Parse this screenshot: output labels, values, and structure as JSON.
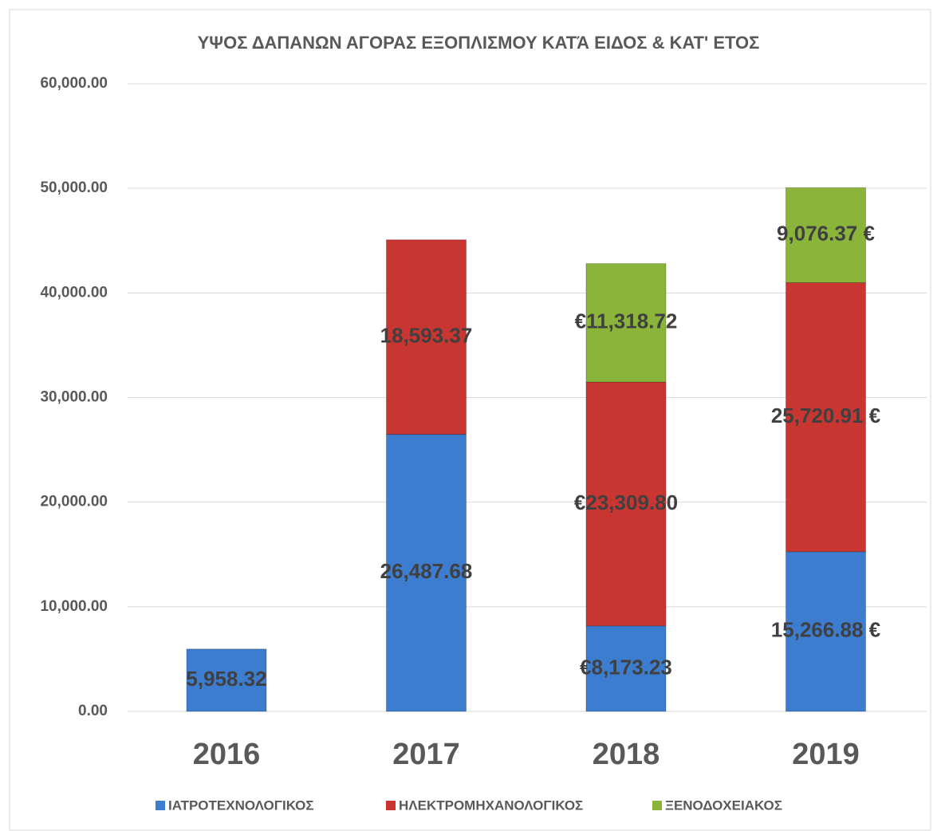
{
  "chart_data": {
    "type": "bar",
    "stacked": true,
    "title": "ΥΨΟΣ ΔΑΠΑΝΩΝ ΑΓΟΡΑΣ ΕΞΟΠΛΙΣΜΟΥ ΚΑΤΆ ΕΙΔΟΣ & ΚΑΤ' ΕΤΟΣ",
    "categories": [
      "2016",
      "2017",
      "2018",
      "2019"
    ],
    "series": [
      {
        "name": "ΙΑΤΡΟΤΕΧΝΟΛΟΓΙΚΟΣ",
        "color": "#3c7dd0",
        "values": [
          5958.32,
          26487.68,
          8173.23,
          15266.88
        ],
        "value_labels": [
          "5,958.32",
          "26,487.68",
          "€8,173.23",
          "15,266.88 €"
        ]
      },
      {
        "name": "ΗΛΕΚΤΡΟΜΗΧΑΝΟΛΟΓΙΚΟΣ",
        "color": "#c93631",
        "values": [
          null,
          18593.37,
          23309.8,
          25720.91
        ],
        "value_labels": [
          null,
          "18,593.37",
          "€23,309.80",
          "25,720.91 €"
        ]
      },
      {
        "name": "ΞΕΝΟΔΟΧΕΙΑΚΟΣ",
        "color": "#8ab43a",
        "values": [
          null,
          null,
          11318.72,
          9076.37
        ],
        "value_labels": [
          null,
          null,
          "€11,318.72",
          "9,076.37 €"
        ]
      }
    ],
    "ylim": [
      0,
      60000
    ],
    "yticks": [
      {
        "value": 0,
        "label": "0.00"
      },
      {
        "value": 10000,
        "label": "10,000.00"
      },
      {
        "value": 20000,
        "label": "20,000.00"
      },
      {
        "value": 30000,
        "label": "30,000.00"
      },
      {
        "value": 40000,
        "label": "40,000.00"
      },
      {
        "value": 50000,
        "label": "50,000.00"
      },
      {
        "value": 60000,
        "label": "60,000.00"
      }
    ],
    "grid": true,
    "legend": "bottom"
  }
}
